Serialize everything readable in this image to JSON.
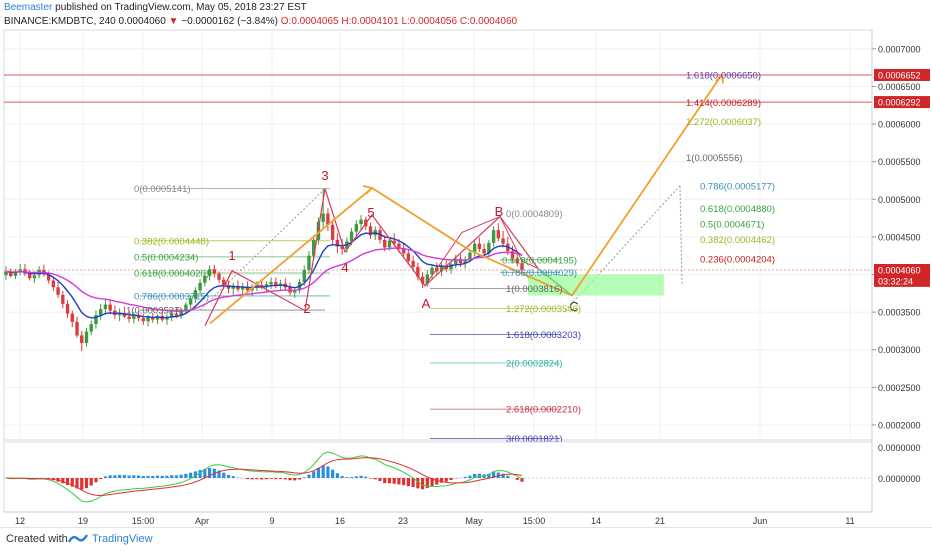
{
  "header": {
    "author": "Beemaster",
    "published_text": "published on TradingView.com, May 05, 2018 23:27 EST",
    "symbol": "BINANCE:KMDBTC, 240",
    "last": "0.0004060",
    "change": "−0.0000162 (−3.84%)",
    "open": "O:0.0004065",
    "high": "H:0.0004101",
    "low": "L:0.0004056",
    "close": "C:0.0004060"
  },
  "footer": {
    "created_with": "Created with",
    "brand": "TradingView"
  },
  "colors": {
    "up": "#3e9a3e",
    "down": "#d93d3d",
    "ema_fast": "#1f3fbf",
    "ema_slow": "#d63adb",
    "wave": "#d63a5a",
    "projection": "#f0a030",
    "target_zone": "#9dfc9d",
    "price_tag": "#d0262a"
  },
  "chart_data": {
    "type": "candlestick",
    "symbol": "BINANCE:KMDBTC",
    "timeframe": "240",
    "ylim": [
      0.00018,
      0.000725
    ],
    "x_tick_labels": [
      "12",
      "19",
      "15:00",
      "Apr",
      "9",
      "16",
      "23",
      "May",
      "15:00",
      "14",
      "21",
      "Jun",
      "11"
    ],
    "y_tick_labels": [
      "0.0007000",
      "0.0006500",
      "0.0006000",
      "0.0005500",
      "0.0005000",
      "0.0004500",
      "0.0004000",
      "0.0003500",
      "0.0003000",
      "0.0002500",
      "0.0002000"
    ],
    "y_ticks": [
      0.0007,
      0.00065,
      0.0006,
      0.00055,
      0.0005,
      0.00045,
      0.0004,
      0.00035,
      0.0003,
      0.00025,
      0.0002
    ],
    "price_tags": [
      {
        "label": "0.0006652",
        "value": 0.0006652
      },
      {
        "label": "0.0006292",
        "value": 0.0006292
      },
      {
        "label": "0.0004060",
        "value": 0.000406
      },
      {
        "label": "03:32:24",
        "value": 0.0003915
      }
    ],
    "oscillator_labels": [
      "0.0000000",
      "0.0000000"
    ],
    "wave_labels": [
      {
        "label": "1",
        "color": "#c0182a"
      },
      {
        "label": "2",
        "color": "#c0182a"
      },
      {
        "label": "3",
        "color": "#c0182a"
      },
      {
        "label": "4",
        "color": "#c0182a"
      },
      {
        "label": "5",
        "color": "#c0182a"
      },
      {
        "label": "A",
        "color": "#c0182a"
      },
      {
        "label": "B",
        "color": "#c0182a"
      },
      {
        "label": "C",
        "color": "#333333"
      }
    ],
    "fib_levels": [
      {
        "label": "0(0.0005141)",
        "value": 0.0005141,
        "color": "#888888"
      },
      {
        "label": "0.382(0.0004448)",
        "value": 0.0004448,
        "color": "#9aba20"
      },
      {
        "label": "0.5(0.0004234)",
        "value": 0.0004234,
        "color": "#3aa040"
      },
      {
        "label": "0.618(0.0004020)",
        "value": 0.000402,
        "color": "#3aa040"
      },
      {
        "label": "0.786(0.0003715)",
        "value": 0.0003715,
        "color": "#3a8fb0"
      },
      {
        "label": "1(0.0003527)",
        "value": 0.0003527,
        "color": "#666666"
      },
      {
        "label": "0(0.0004809)",
        "value": 0.0004809,
        "color": "#888888"
      },
      {
        "label": "0.618(0.0004195)",
        "value": 0.0004195,
        "color": "#3aa040"
      },
      {
        "label": "0.786(0.0004029)",
        "value": 0.0004029,
        "color": "#3a8fb0"
      },
      {
        "label": "1(0.0003816)",
        "value": 0.0003816,
        "color": "#666666"
      },
      {
        "label": "1.272(0.0003546)",
        "value": 0.0003546,
        "color": "#9aba20"
      },
      {
        "label": "1.618(0.0003203)",
        "value": 0.0003203,
        "color": "#4040b0"
      },
      {
        "label": "2(0.0002824)",
        "value": 0.0002824,
        "color": "#30b0a0"
      },
      {
        "label": "2.618(0.0002210)",
        "value": 0.000221,
        "color": "#c03040"
      },
      {
        "label": "3(0.0001821)",
        "value": 0.0001821,
        "color": "#4040b0"
      },
      {
        "label": "1.618(0.0006650)",
        "value": 0.000665,
        "color": "#5a3ab0"
      },
      {
        "label": "1.414(0.0006289)",
        "value": 0.0006289,
        "color": "#c02020"
      },
      {
        "label": "1.272(0.0006037)",
        "value": 0.0006037,
        "color": "#9aba20"
      },
      {
        "label": "1(0.0005556)",
        "value": 0.0005556,
        "color": "#666666"
      },
      {
        "label": "0.786(0.0005177)",
        "value": 0.0005177,
        "color": "#3a8fb0"
      },
      {
        "label": "0.618(0.0004880)",
        "value": 0.000488,
        "color": "#3aa040"
      },
      {
        "label": "0.5(0.0004671)",
        "value": 0.0004671,
        "color": "#3aa040"
      },
      {
        "label": "0.382(0.0004462)",
        "value": 0.0004462,
        "color": "#9aba20"
      },
      {
        "label": "0.236(0.0004204)",
        "value": 0.0004204,
        "color": "#c02020"
      }
    ],
    "candles": [
      [
        0.000399,
        0.000411,
        0.000393,
        0.000404
      ],
      [
        0.000404,
        0.000408,
        0.000396,
        0.000398
      ],
      [
        0.000398,
        0.000407,
        0.000394,
        0.000403
      ],
      [
        0.000403,
        0.000414,
        0.000399,
        0.000407
      ],
      [
        0.000407,
        0.000414,
        0.000398,
        0.000401
      ],
      [
        0.000401,
        0.000406,
        0.000392,
        0.000395
      ],
      [
        0.000395,
        0.000404,
        0.000389,
        0.000399
      ],
      [
        0.000399,
        0.000411,
        0.000395,
        0.000406
      ],
      [
        0.000406,
        0.000413,
        0.000397,
        0.0004
      ],
      [
        0.0004,
        0.000404,
        0.000388,
        0.000392
      ],
      [
        0.000392,
        0.000396,
        0.000378,
        0.000383
      ],
      [
        0.000383,
        0.00039,
        0.000369,
        0.000373
      ],
      [
        0.000373,
        0.000378,
        0.000355,
        0.000361
      ],
      [
        0.000361,
        0.000366,
        0.000342,
        0.000348
      ],
      [
        0.000348,
        0.000352,
        0.00033,
        0.000337
      ],
      [
        0.000337,
        0.000344,
        0.000316,
        0.000319
      ],
      [
        0.000319,
        0.000325,
        0.000298,
        0.000309
      ],
      [
        0.000309,
        0.000329,
        0.000304,
        0.000324
      ],
      [
        0.000324,
        0.000339,
        0.000319,
        0.000334
      ],
      [
        0.000334,
        0.000352,
        0.000328,
        0.000346
      ],
      [
        0.000346,
        0.000361,
        0.00034,
        0.000354
      ],
      [
        0.000354,
        0.000368,
        0.000347,
        0.00036
      ],
      [
        0.00036,
        0.000366,
        0.000347,
        0.000352
      ],
      [
        0.000352,
        0.000359,
        0.000341,
        0.000346
      ],
      [
        0.000346,
        0.000355,
        0.000338,
        0.000349
      ],
      [
        0.000349,
        0.000357,
        0.000342,
        0.000344
      ],
      [
        0.000344,
        0.000352,
        0.000336,
        0.000341
      ],
      [
        0.000341,
        0.00035,
        0.000335,
        0.000346
      ],
      [
        0.000346,
        0.000352,
        0.000338,
        0.000342
      ],
      [
        0.000342,
        0.000348,
        0.000333,
        0.000338
      ],
      [
        0.000338,
        0.000346,
        0.000331,
        0.000343
      ],
      [
        0.000343,
        0.000349,
        0.000336,
        0.00034
      ],
      [
        0.00034,
        0.000347,
        0.000334,
        0.000345
      ],
      [
        0.000345,
        0.000351,
        0.000337,
        0.00034
      ],
      [
        0.00034,
        0.000347,
        0.000333,
        0.000343
      ],
      [
        0.000343,
        0.000352,
        0.000338,
        0.000348
      ],
      [
        0.000348,
        0.000356,
        0.000342,
        0.000345
      ],
      [
        0.000345,
        0.000355,
        0.000341,
        0.000352
      ],
      [
        0.000352,
        0.000363,
        0.000347,
        0.00036
      ],
      [
        0.00036,
        0.000372,
        0.000354,
        0.000368
      ],
      [
        0.000368,
        0.000383,
        0.000362,
        0.000379
      ],
      [
        0.000379,
        0.000394,
        0.000373,
        0.000389
      ],
      [
        0.000389,
        0.000403,
        0.000384,
        0.000398
      ],
      [
        0.000398,
        0.000412,
        0.000392,
        0.000407
      ],
      [
        0.000407,
        0.000413,
        0.000396,
        0.000401
      ],
      [
        0.000401,
        0.000404,
        0.000389,
        0.000393
      ],
      [
        0.000393,
        0.000397,
        0.000381,
        0.000386
      ],
      [
        0.000386,
        0.000392,
        0.000375,
        0.000381
      ],
      [
        0.000381,
        0.000389,
        0.000373,
        0.000385
      ],
      [
        0.000385,
        0.000392,
        0.000377,
        0.00038
      ],
      [
        0.00038,
        0.000389,
        0.000374,
        0.000384
      ],
      [
        0.000384,
        0.000391,
        0.000376,
        0.000379
      ],
      [
        0.000379,
        0.000387,
        0.000372,
        0.000383
      ],
      [
        0.000383,
        0.000391,
        0.000378,
        0.000386
      ],
      [
        0.000386,
        0.000394,
        0.00038,
        0.000383
      ],
      [
        0.000383,
        0.000391,
        0.000377,
        0.000387
      ],
      [
        0.000387,
        0.000396,
        0.000381,
        0.00039
      ],
      [
        0.00039,
        0.000396,
        0.000382,
        0.000385
      ],
      [
        0.000385,
        0.000393,
        0.000378,
        0.000388
      ],
      [
        0.000388,
        0.000395,
        0.00038,
        0.000383
      ],
      [
        0.000383,
        0.000389,
        0.000372,
        0.000376
      ],
      [
        0.000376,
        0.000383,
        0.000369,
        0.000379
      ],
      [
        0.000379,
        0.000394,
        0.000375,
        0.00039
      ],
      [
        0.00039,
        0.000412,
        0.000385,
        0.000406
      ],
      [
        0.000406,
        0.000431,
        0.000401,
        0.000425
      ],
      [
        0.000425,
        0.000452,
        0.000419,
        0.000446
      ],
      [
        0.000446,
        0.000476,
        0.00044,
        0.00047
      ],
      [
        0.00047,
        0.000514,
        0.000462,
        0.000481
      ],
      [
        0.000481,
        0.000488,
        0.000458,
        0.000466
      ],
      [
        0.000466,
        0.000473,
        0.000439,
        0.000446
      ],
      [
        0.000446,
        0.000455,
        0.000428,
        0.000437
      ],
      [
        0.000437,
        0.000447,
        0.000426,
        0.000434
      ],
      [
        0.000434,
        0.000449,
        0.000429,
        0.000444
      ],
      [
        0.000444,
        0.000462,
        0.000439,
        0.000457
      ],
      [
        0.000457,
        0.000472,
        0.000451,
        0.000467
      ],
      [
        0.000467,
        0.000479,
        0.00046,
        0.000473
      ],
      [
        0.000473,
        0.000477,
        0.000459,
        0.000464
      ],
      [
        0.000464,
        0.000469,
        0.000447,
        0.000452
      ],
      [
        0.000452,
        0.000464,
        0.000446,
        0.000459
      ],
      [
        0.000459,
        0.000463,
        0.000441,
        0.000446
      ],
      [
        0.000446,
        0.000452,
        0.000431,
        0.000436
      ],
      [
        0.000436,
        0.000449,
        0.000432,
        0.000445
      ],
      [
        0.000445,
        0.000455,
        0.000437,
        0.000441
      ],
      [
        0.000441,
        0.000447,
        0.000429,
        0.000434
      ],
      [
        0.000434,
        0.000442,
        0.000424,
        0.000428
      ],
      [
        0.000428,
        0.000434,
        0.000413,
        0.000418
      ],
      [
        0.000418,
        0.000425,
        0.000404,
        0.00041
      ],
      [
        0.00041,
        0.000416,
        0.000392,
        0.000397
      ],
      [
        0.000397,
        0.000403,
        0.000382,
        0.000388
      ],
      [
        0.000388,
        0.000406,
        0.000384,
        0.0004
      ],
      [
        0.0004,
        0.000413,
        0.000395,
        0.000409
      ],
      [
        0.000409,
        0.000416,
        0.0004,
        0.000404
      ],
      [
        0.000404,
        0.000415,
        0.000398,
        0.000412
      ],
      [
        0.000412,
        0.000419,
        0.000403,
        0.000407
      ],
      [
        0.000407,
        0.000418,
        0.000401,
        0.000414
      ],
      [
        0.000414,
        0.000426,
        0.000408,
        0.000421
      ],
      [
        0.000421,
        0.000427,
        0.00041,
        0.000415
      ],
      [
        0.000415,
        0.000424,
        0.000408,
        0.00042
      ],
      [
        0.00042,
        0.000433,
        0.000416,
        0.000429
      ],
      [
        0.000429,
        0.000446,
        0.000424,
        0.000441
      ],
      [
        0.000441,
        0.000449,
        0.00043,
        0.000434
      ],
      [
        0.000434,
        0.000441,
        0.000424,
        0.000428
      ],
      [
        0.000428,
        0.000446,
        0.000423,
        0.000442
      ],
      [
        0.000442,
        0.000464,
        0.000437,
        0.000459
      ],
      [
        0.000459,
        0.000468,
        0.000444,
        0.000448
      ],
      [
        0.000448,
        0.000458,
        0.000436,
        0.000441
      ],
      [
        0.000441,
        0.00045,
        0.000426,
        0.000431
      ],
      [
        0.000431,
        0.000438,
        0.000416,
        0.000421
      ],
      [
        0.000421,
        0.000429,
        0.000411,
        0.000415
      ],
      [
        0.000415,
        0.000421,
        0.000403,
        0.000406
      ]
    ]
  }
}
